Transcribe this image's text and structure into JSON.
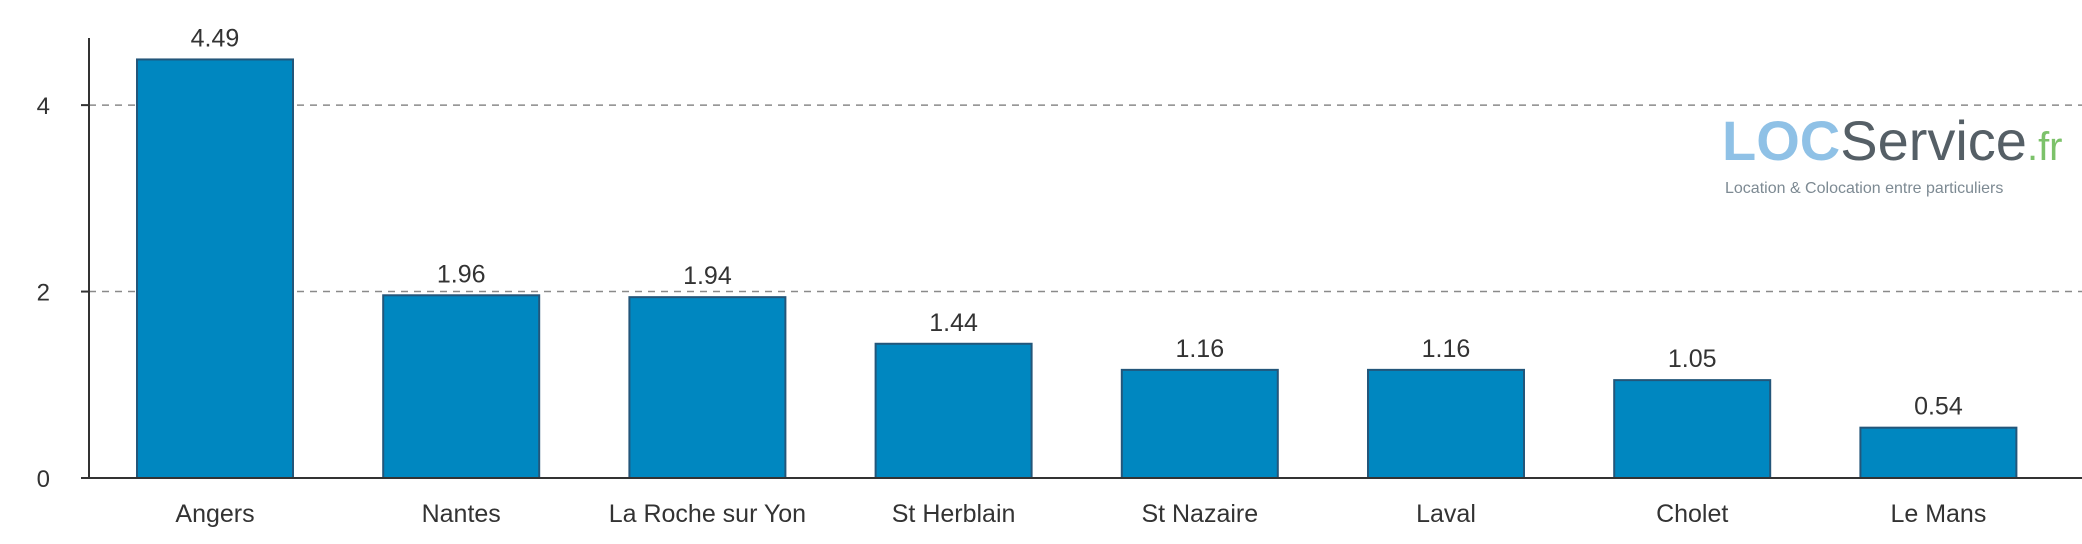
{
  "chart_data": {
    "type": "bar",
    "categories": [
      "Angers",
      "Nantes",
      "La Roche sur Yon",
      "St Herblain",
      "St Nazaire",
      "Laval",
      "Cholet",
      "Le Mans"
    ],
    "values": [
      4.49,
      1.96,
      1.94,
      1.44,
      1.16,
      1.16,
      1.05,
      0.54
    ],
    "data_labels": [
      "4.49",
      "1.96",
      "1.94",
      "1.44",
      "1.16",
      "1.16",
      "1.05",
      "0.54"
    ],
    "ylim": [
      0,
      4.72
    ],
    "yticks": [
      0,
      2,
      4
    ],
    "ytick_labels": [
      "0",
      "2",
      "4"
    ],
    "grid": "horizontal dashed",
    "bar_color": "#0087c0",
    "bar_stroke": "#23567a"
  },
  "logo": {
    "loc": "LOC",
    "service": "Service",
    "fr": ".fr",
    "tagline": "Location & Colocation entre particuliers",
    "loc_color": "#8fc1e6",
    "service_color": "#555f66",
    "fr_color": "#7cc26a",
    "tagline_color": "#7d8a93"
  }
}
